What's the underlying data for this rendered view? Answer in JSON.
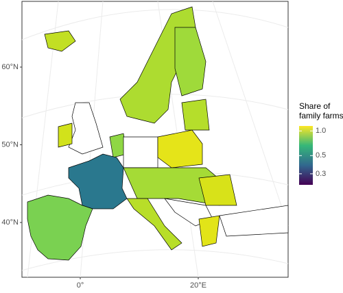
{
  "map": {
    "lat_labels": [
      {
        "value": 60,
        "label": "60°N"
      },
      {
        "value": 50,
        "label": "50°N"
      },
      {
        "value": 40,
        "label": "40°N"
      }
    ],
    "lon_labels": [
      {
        "value": 0,
        "label": "0°"
      },
      {
        "value": 20,
        "label": "20°E"
      }
    ],
    "legend": {
      "title": [
        "Share of",
        "family farms"
      ],
      "log": true,
      "lim": [
        0.22,
        1.15
      ],
      "colors": [
        "#440154",
        "#31688e",
        "#35b779",
        "#fde725"
      ],
      "ticks": [
        {
          "value": 1,
          "label": "1.0"
        },
        0.5,
        0.3
      ]
    }
  }
}
